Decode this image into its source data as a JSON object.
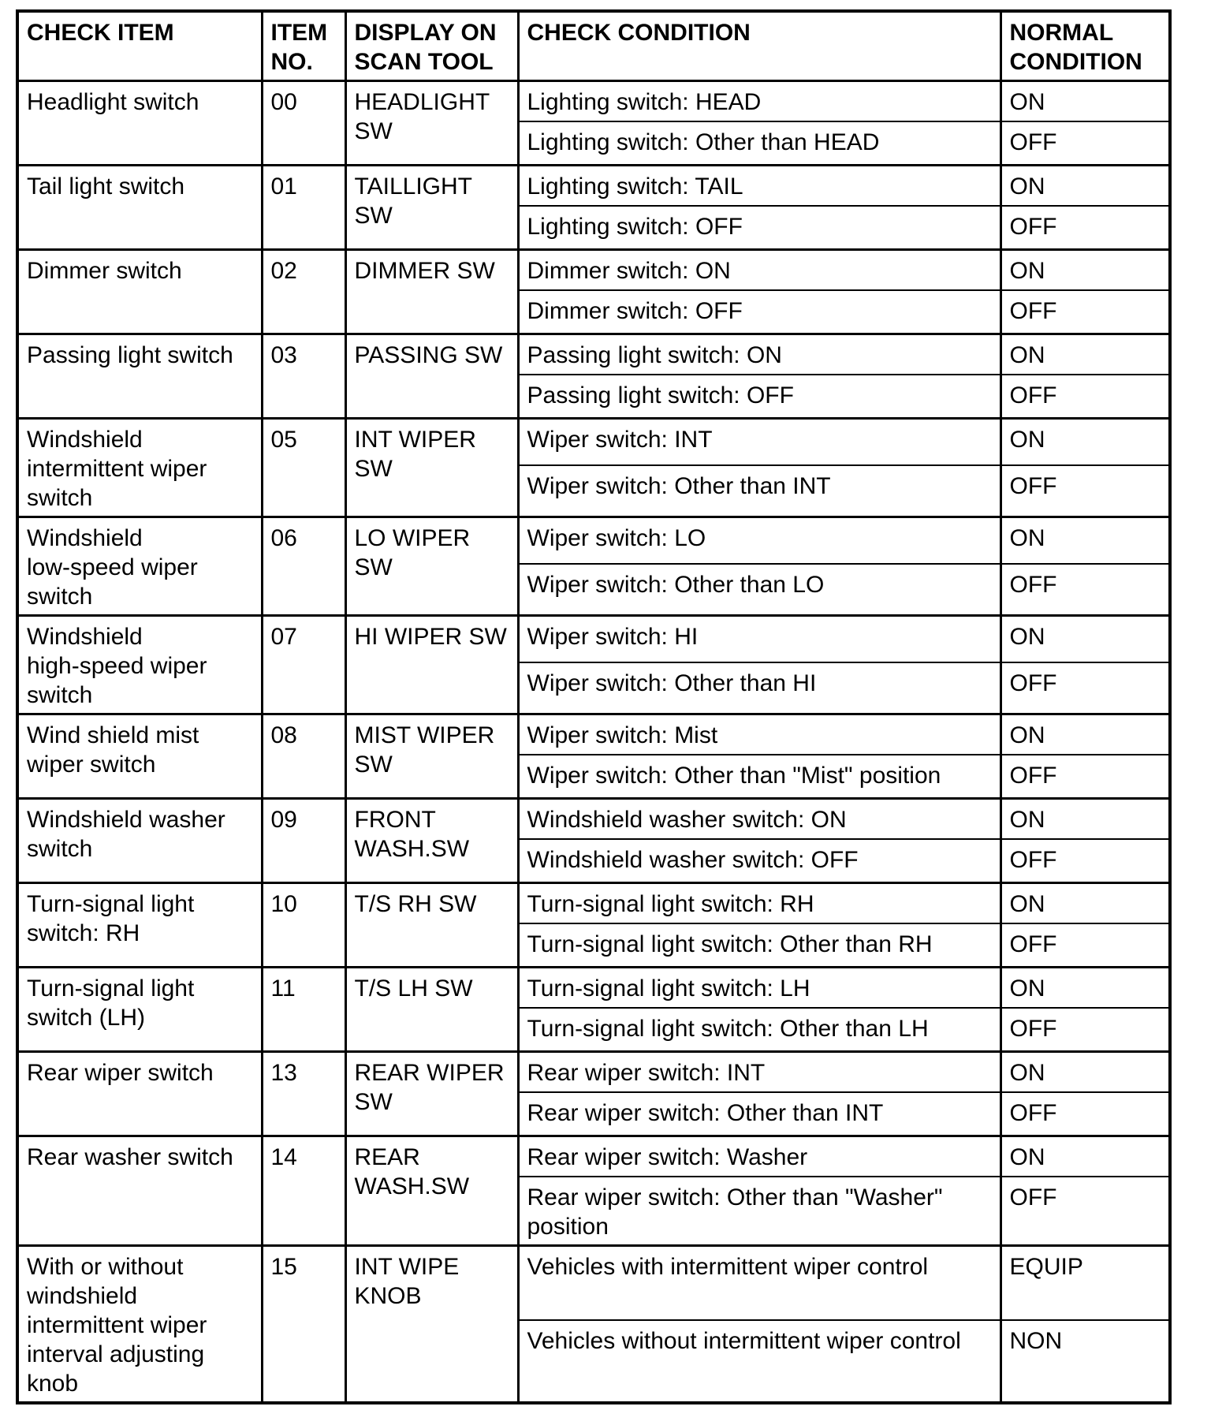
{
  "colors": {
    "background": "#ffffff",
    "text": "#000000",
    "border": "#000000"
  },
  "table": {
    "headers": [
      "CHECK ITEM",
      "ITEM\nNO.",
      "DISPLAY ON\nSCAN TOOL",
      "CHECK CONDITION",
      "NORMAL\nCONDITION"
    ],
    "rows": [
      {
        "check_item": "Headlight switch",
        "item_no": "00",
        "scan_display": "HEADLIGHT\nSW",
        "conditions": [
          {
            "check": "Lighting switch: HEAD",
            "normal": "ON"
          },
          {
            "check": "Lighting switch: Other than HEAD",
            "normal": "OFF"
          }
        ]
      },
      {
        "check_item": "Tail light switch",
        "item_no": "01",
        "scan_display": "TAILLIGHT\nSW",
        "conditions": [
          {
            "check": "Lighting switch: TAIL",
            "normal": "ON"
          },
          {
            "check": "Lighting switch: OFF",
            "normal": "OFF"
          }
        ]
      },
      {
        "check_item": "Dimmer switch",
        "item_no": "02",
        "scan_display": "DIMMER SW",
        "conditions": [
          {
            "check": "Dimmer switch: ON",
            "normal": "ON"
          },
          {
            "check": "Dimmer switch: OFF",
            "normal": "OFF"
          }
        ]
      },
      {
        "check_item": "Passing light switch",
        "item_no": "03",
        "scan_display": "PASSING SW",
        "conditions": [
          {
            "check": "Passing light switch: ON",
            "normal": "ON"
          },
          {
            "check": "Passing light switch: OFF",
            "normal": "OFF"
          }
        ]
      },
      {
        "check_item": "Windshield\nintermittent wiper\nswitch",
        "item_no": "05",
        "scan_display": "INT WIPER\nSW",
        "conditions": [
          {
            "check": "Wiper switch: INT",
            "normal": "ON"
          },
          {
            "check": "Wiper switch: Other than INT",
            "normal": "OFF"
          }
        ]
      },
      {
        "check_item": "Windshield\nlow-speed wiper\nswitch",
        "item_no": "06",
        "scan_display": "LO WIPER\nSW",
        "conditions": [
          {
            "check": "Wiper switch: LO",
            "normal": "ON"
          },
          {
            "check": "Wiper switch: Other than LO",
            "normal": "OFF"
          }
        ]
      },
      {
        "check_item": "Windshield\nhigh-speed wiper\nswitch",
        "item_no": "07",
        "scan_display": "HI WIPER SW",
        "conditions": [
          {
            "check": "Wiper switch: HI",
            "normal": "ON"
          },
          {
            "check": "Wiper switch: Other than HI",
            "normal": "OFF"
          }
        ]
      },
      {
        "check_item": "Wind shield mist\nwiper switch",
        "item_no": "08",
        "scan_display": "MIST WIPER\nSW",
        "conditions": [
          {
            "check": "Wiper switch: Mist",
            "normal": "ON"
          },
          {
            "check": "Wiper switch: Other than \"Mist\" position",
            "normal": "OFF"
          }
        ]
      },
      {
        "check_item": "Windshield washer\nswitch",
        "item_no": "09",
        "scan_display": "FRONT\nWASH.SW",
        "conditions": [
          {
            "check": "Windshield washer switch: ON",
            "normal": "ON"
          },
          {
            "check": "Windshield washer switch: OFF",
            "normal": "OFF"
          }
        ]
      },
      {
        "check_item": "Turn-signal light\nswitch: RH",
        "item_no": "10",
        "scan_display": "T/S RH SW",
        "conditions": [
          {
            "check": "Turn-signal light switch: RH",
            "normal": "ON"
          },
          {
            "check": "Turn-signal light switch: Other than RH",
            "normal": "OFF"
          }
        ]
      },
      {
        "check_item": "Turn-signal light\nswitch (LH)",
        "item_no": "11",
        "scan_display": "T/S LH SW",
        "conditions": [
          {
            "check": "Turn-signal light switch: LH",
            "normal": "ON"
          },
          {
            "check": "Turn-signal light switch: Other than LH",
            "normal": "OFF"
          }
        ]
      },
      {
        "check_item": "Rear wiper switch",
        "item_no": "13",
        "scan_display": "REAR WIPER\nSW",
        "conditions": [
          {
            "check": "Rear wiper switch: INT",
            "normal": "ON"
          },
          {
            "check": "Rear wiper switch: Other than INT",
            "normal": "OFF"
          }
        ]
      },
      {
        "check_item": "Rear washer switch",
        "item_no": "14",
        "scan_display": "REAR\nWASH.SW",
        "conditions": [
          {
            "check": "Rear wiper switch: Washer",
            "normal": "ON"
          },
          {
            "check": "Rear wiper switch: Other than \"Washer\" position",
            "normal": "OFF"
          }
        ]
      },
      {
        "check_item": "With or without\nwindshield\nintermittent wiper\ninterval adjusting\nknob",
        "item_no": "15",
        "scan_display": "INT WIPE\nKNOB",
        "conditions": [
          {
            "check": "Vehicles with intermittent wiper control",
            "normal": "EQUIP"
          },
          {
            "check": "Vehicles without intermittent wiper control",
            "normal": "NON"
          }
        ]
      }
    ]
  }
}
